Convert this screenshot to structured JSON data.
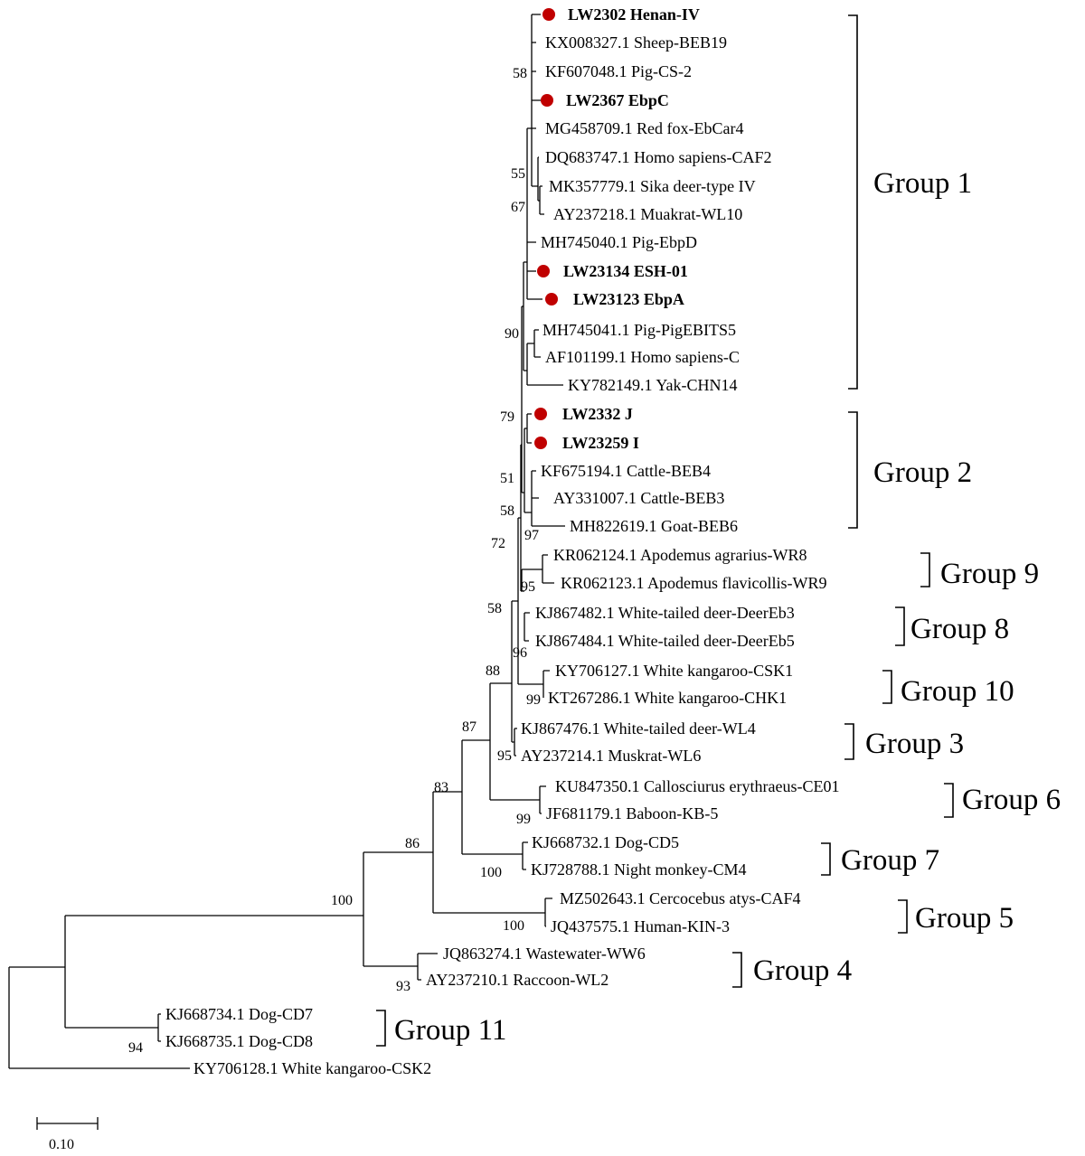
{
  "figure": {
    "marker_color": "#c00000",
    "taxa": [
      {
        "label": "LW2302 Henan-IV",
        "bold": true,
        "marker": true
      },
      {
        "label": "KX008327.1  Sheep-BEB19",
        "bold": false,
        "marker": false
      },
      {
        "label": "KF607048.1  Pig-CS-2",
        "bold": false,
        "marker": false
      },
      {
        "label": "LW2367 EbpC",
        "bold": true,
        "marker": true
      },
      {
        "label": "MG458709.1  Red fox-EbCar4",
        "bold": false,
        "marker": false
      },
      {
        "label": "DQ683747.1  Homo sapiens-CAF2",
        "bold": false,
        "marker": false
      },
      {
        "label": "MK357779.1  Sika deer-type IV",
        "bold": false,
        "marker": false
      },
      {
        "label": "AY237218.1  Muakrat-WL10",
        "bold": false,
        "marker": false
      },
      {
        "label": "MH745040.1  Pig-EbpD",
        "bold": false,
        "marker": false
      },
      {
        "label": "LW23134 ESH-01",
        "bold": true,
        "marker": true
      },
      {
        "label": "LW23123 EbpA",
        "bold": true,
        "marker": true
      },
      {
        "label": "MH745041.1  Pig-PigEBITS5",
        "bold": false,
        "marker": false
      },
      {
        "label": "AF101199.1  Homo sapiens-C",
        "bold": false,
        "marker": false
      },
      {
        "label": "KY782149.1  Yak-CHN14",
        "bold": false,
        "marker": false
      },
      {
        "label": "LW2332 J",
        "bold": true,
        "marker": true
      },
      {
        "label": "LW23259 I",
        "bold": true,
        "marker": true
      },
      {
        "label": "KF675194.1  Cattle-BEB4",
        "bold": false,
        "marker": false
      },
      {
        "label": "AY331007.1  Cattle-BEB3",
        "bold": false,
        "marker": false
      },
      {
        "label": "MH822619.1  Goat-BEB6",
        "bold": false,
        "marker": false
      },
      {
        "label": "KR062124.1  Apodemus agrarius-WR8",
        "bold": false,
        "marker": false
      },
      {
        "label": "KR062123.1  Apodemus flavicollis-WR9",
        "bold": false,
        "marker": false
      },
      {
        "label": "KJ867482.1  White-tailed deer-DeerEb3",
        "bold": false,
        "marker": false
      },
      {
        "label": "KJ867484.1  White-tailed deer-DeerEb5",
        "bold": false,
        "marker": false
      },
      {
        "label": "KY706127.1  White kangaroo-CSK1",
        "bold": false,
        "marker": false
      },
      {
        "label": "KT267286.1  White kangaroo-CHK1",
        "bold": false,
        "marker": false
      },
      {
        "label": "KJ867476.1  White-tailed deer-WL4",
        "bold": false,
        "marker": false
      },
      {
        "label": "AY237214.1  Muskrat-WL6",
        "bold": false,
        "marker": false
      },
      {
        "label": "KU847350.1  Callosciurus erythraeus-CE01",
        "bold": false,
        "marker": false
      },
      {
        "label": "JF681179.1  Baboon-KB-5",
        "bold": false,
        "marker": false
      },
      {
        "label": "KJ668732.1  Dog-CD5",
        "bold": false,
        "marker": false
      },
      {
        "label": "KJ728788.1  Night monkey-CM4",
        "bold": false,
        "marker": false
      },
      {
        "label": "MZ502643.1  Cercocebus atys-CAF4",
        "bold": false,
        "marker": false
      },
      {
        "label": "JQ437575.1  Human-KIN-3",
        "bold": false,
        "marker": false
      },
      {
        "label": "JQ863274.1  Wastewater-WW6",
        "bold": false,
        "marker": false
      },
      {
        "label": "AY237210.1  Raccoon-WL2",
        "bold": false,
        "marker": false
      },
      {
        "label": "KJ668734.1  Dog-CD7",
        "bold": false,
        "marker": false
      },
      {
        "label": "KJ668735.1  Dog-CD8",
        "bold": false,
        "marker": false
      },
      {
        "label": "KY706128.1  White kangaroo-CSK2",
        "bold": false,
        "marker": false
      }
    ],
    "bootstrap": [
      "58",
      "55",
      "67",
      "90",
      "79",
      "51",
      "58",
      "97",
      "72",
      "95",
      "58",
      "96",
      "88",
      "99",
      "87",
      "95",
      "99",
      "83",
      "86",
      "100",
      "100",
      "100",
      "93",
      "94"
    ],
    "groups": [
      "Group 1",
      "Group 2",
      "Group 9",
      "Group 8",
      "Group 10",
      "Group 3",
      "Group 6",
      "Group 7",
      "Group 5",
      "Group 4",
      "Group 11"
    ],
    "scale_bar": "0.10"
  }
}
